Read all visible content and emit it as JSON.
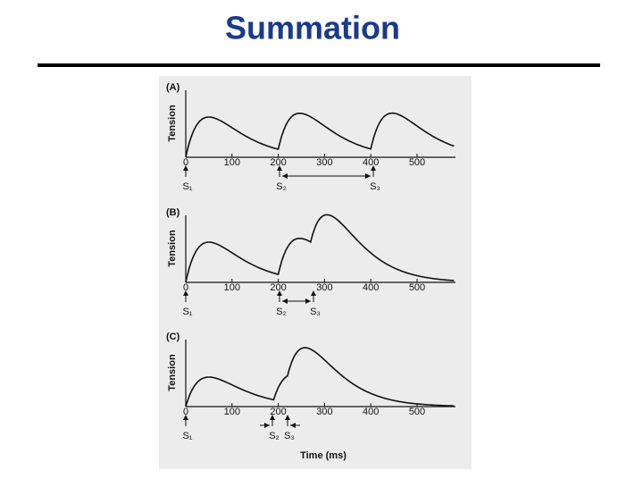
{
  "title": "Summation",
  "x_label": "Time (ms)",
  "panels": [
    {
      "label": "(A)",
      "y_label": "Tension",
      "x_ticks": [
        "0",
        "100",
        "200",
        "300",
        "400",
        "500"
      ],
      "stimuli": [
        "S₁",
        "S₂",
        "S₃"
      ]
    },
    {
      "label": "(B)",
      "y_label": "Tension",
      "x_ticks": [
        "0",
        "100",
        "200",
        "300",
        "400",
        "500"
      ],
      "stimuli": [
        "S₁",
        "S₂",
        "S₃"
      ]
    },
    {
      "label": "(C)",
      "y_label": "Tension",
      "x_ticks": [
        "0",
        "100",
        "200",
        "300",
        "400",
        "500"
      ],
      "stimuli": [
        "S₁",
        "S₂",
        "S₃"
      ]
    }
  ]
}
